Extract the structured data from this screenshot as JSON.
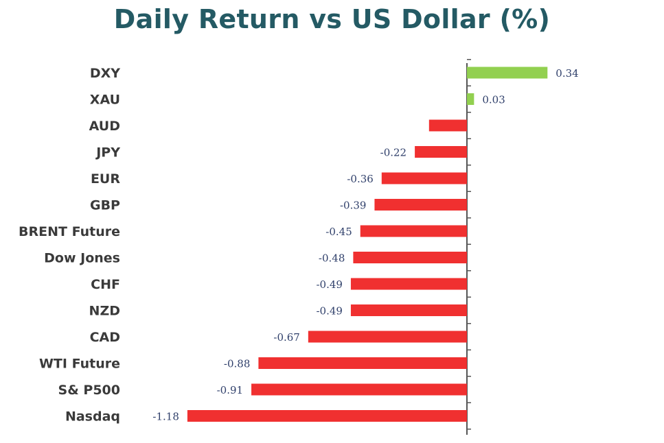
{
  "chart_data": {
    "type": "bar",
    "orientation": "horizontal",
    "title": "Daily Return vs US Dollar (%)",
    "categories": [
      "DXY",
      "XAU",
      "AUD",
      "JPY",
      "EUR",
      "GBP",
      "BRENT Future",
      "Dow Jones",
      "CHF",
      "NZD",
      "CAD",
      "WTI Future",
      "S& P500",
      "Nasdaq"
    ],
    "values": [
      0.34,
      0.03,
      -0.16,
      -0.22,
      -0.36,
      -0.39,
      -0.45,
      -0.48,
      -0.49,
      -0.49,
      -0.67,
      -0.88,
      -0.91,
      -1.18
    ],
    "data_labels": [
      "0.34",
      "0.03",
      "",
      "-0.22",
      "-0.36",
      "-0.39",
      "-0.45",
      "-0.48",
      "-0.49",
      "-0.49",
      "-0.67",
      "-0.88",
      "-0.91",
      "-1.18"
    ],
    "xlim": [
      -1.18,
      0.34
    ],
    "grid": false,
    "legend": "none",
    "colors": {
      "positive": "#92d050",
      "negative": "#f03030",
      "axis": "#555555"
    }
  }
}
